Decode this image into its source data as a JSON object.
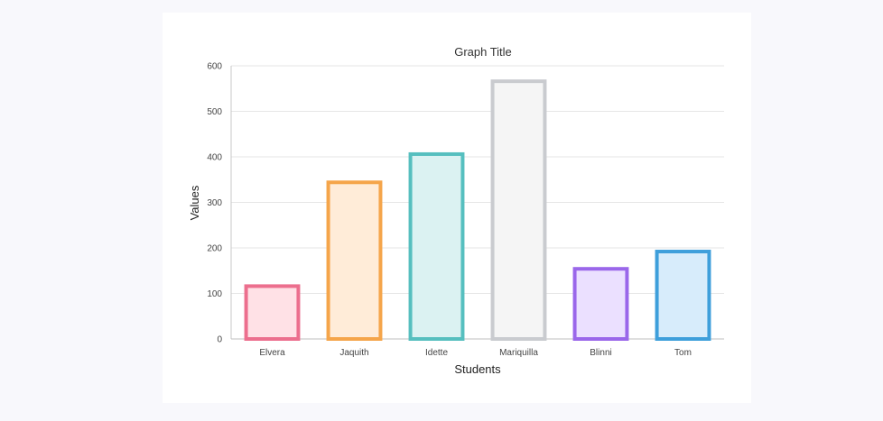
{
  "chart_data": {
    "type": "bar",
    "title": "Graph Title",
    "xlabel": "Students",
    "ylabel": "Values",
    "categories": [
      "Elvera",
      "Jaquith",
      "Idette",
      "Mariquilla",
      "Blinni",
      "Tom"
    ],
    "values": [
      120,
      348,
      410,
      570,
      158,
      196
    ],
    "ylim": [
      0,
      600
    ],
    "yticks": [
      "0",
      "100",
      "200",
      "300",
      "400",
      "500",
      "600"
    ],
    "grid": true,
    "legend": "none",
    "bar_colors": [
      {
        "border": "#ec6f8e",
        "fill": "#ffe1e6"
      },
      {
        "border": "#f5a54a",
        "fill": "#ffecd8"
      },
      {
        "border": "#56bfbf",
        "fill": "#dbf2f2"
      },
      {
        "border": "#c9cbcf",
        "fill": "#f5f5f5"
      },
      {
        "border": "#9a67ea",
        "fill": "#ebe0ff"
      },
      {
        "border": "#3e9fdb",
        "fill": "#d7ecfb"
      }
    ]
  }
}
